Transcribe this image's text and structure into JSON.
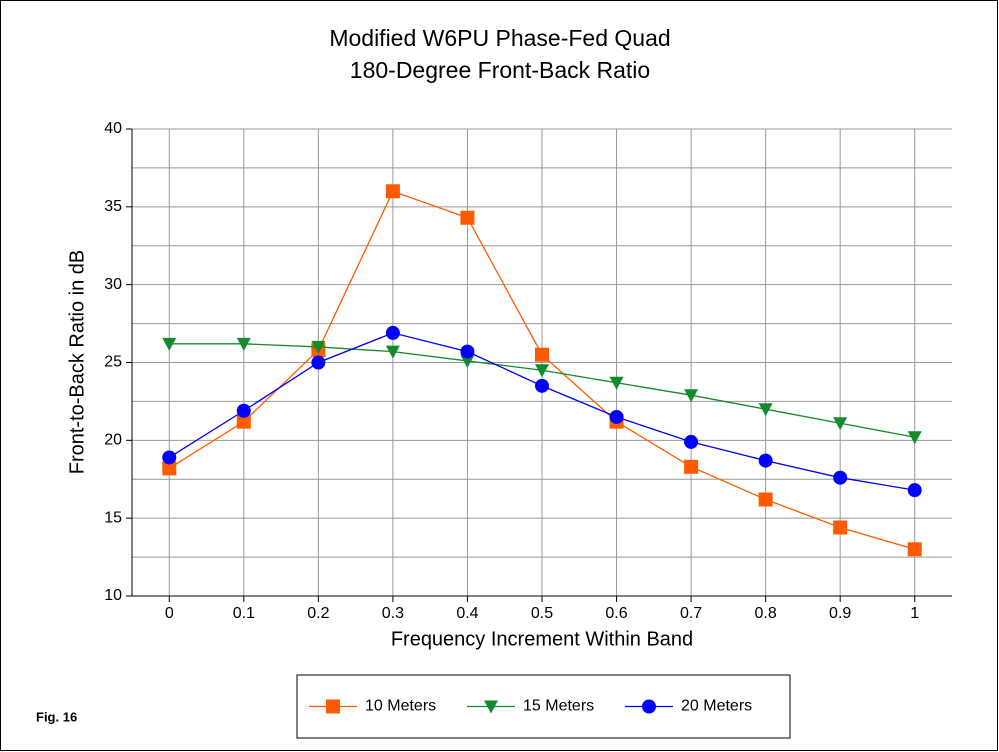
{
  "chart_data": {
    "type": "line",
    "title": "Modified W6PU Phase-Fed Quad",
    "subtitle": "180-Degree Front-Back Ratio",
    "x_label": "Frequency Increment Within Band",
    "y_label": "Front-to-Back Ratio in dB",
    "note": "Fig. 16",
    "categories": [
      "0",
      "0.1",
      "0.2",
      "0.3",
      "0.4",
      "0.5",
      "0.6",
      "0.7",
      "0.8",
      "0.9",
      "1"
    ],
    "series": [
      {
        "name": "10 Meters",
        "color": "#ff5a00",
        "marker": "square",
        "values": [
          18.2,
          21.2,
          25.8,
          36.0,
          34.3,
          25.5,
          21.2,
          18.3,
          16.2,
          14.4,
          13.0
        ]
      },
      {
        "name": "15 Meters",
        "color": "#138a2c",
        "marker": "triangle-down",
        "values": [
          26.2,
          26.2,
          26.0,
          25.7,
          25.1,
          24.5,
          23.7,
          22.9,
          22.0,
          21.1,
          20.2
        ]
      },
      {
        "name": "20 Meters",
        "color": "#0000ff",
        "marker": "circle",
        "values": [
          18.9,
          21.9,
          25.0,
          26.9,
          25.7,
          23.5,
          21.5,
          19.9,
          18.7,
          17.6,
          16.8
        ]
      }
    ],
    "ylim": [
      10,
      40
    ],
    "yticks": [
      10,
      15,
      20,
      25,
      30,
      35,
      40
    ],
    "y_minor_grid": [
      12.5,
      17.5,
      22.5,
      27.5,
      32.5,
      37.5
    ],
    "grid": true,
    "legend": "bottom"
  }
}
